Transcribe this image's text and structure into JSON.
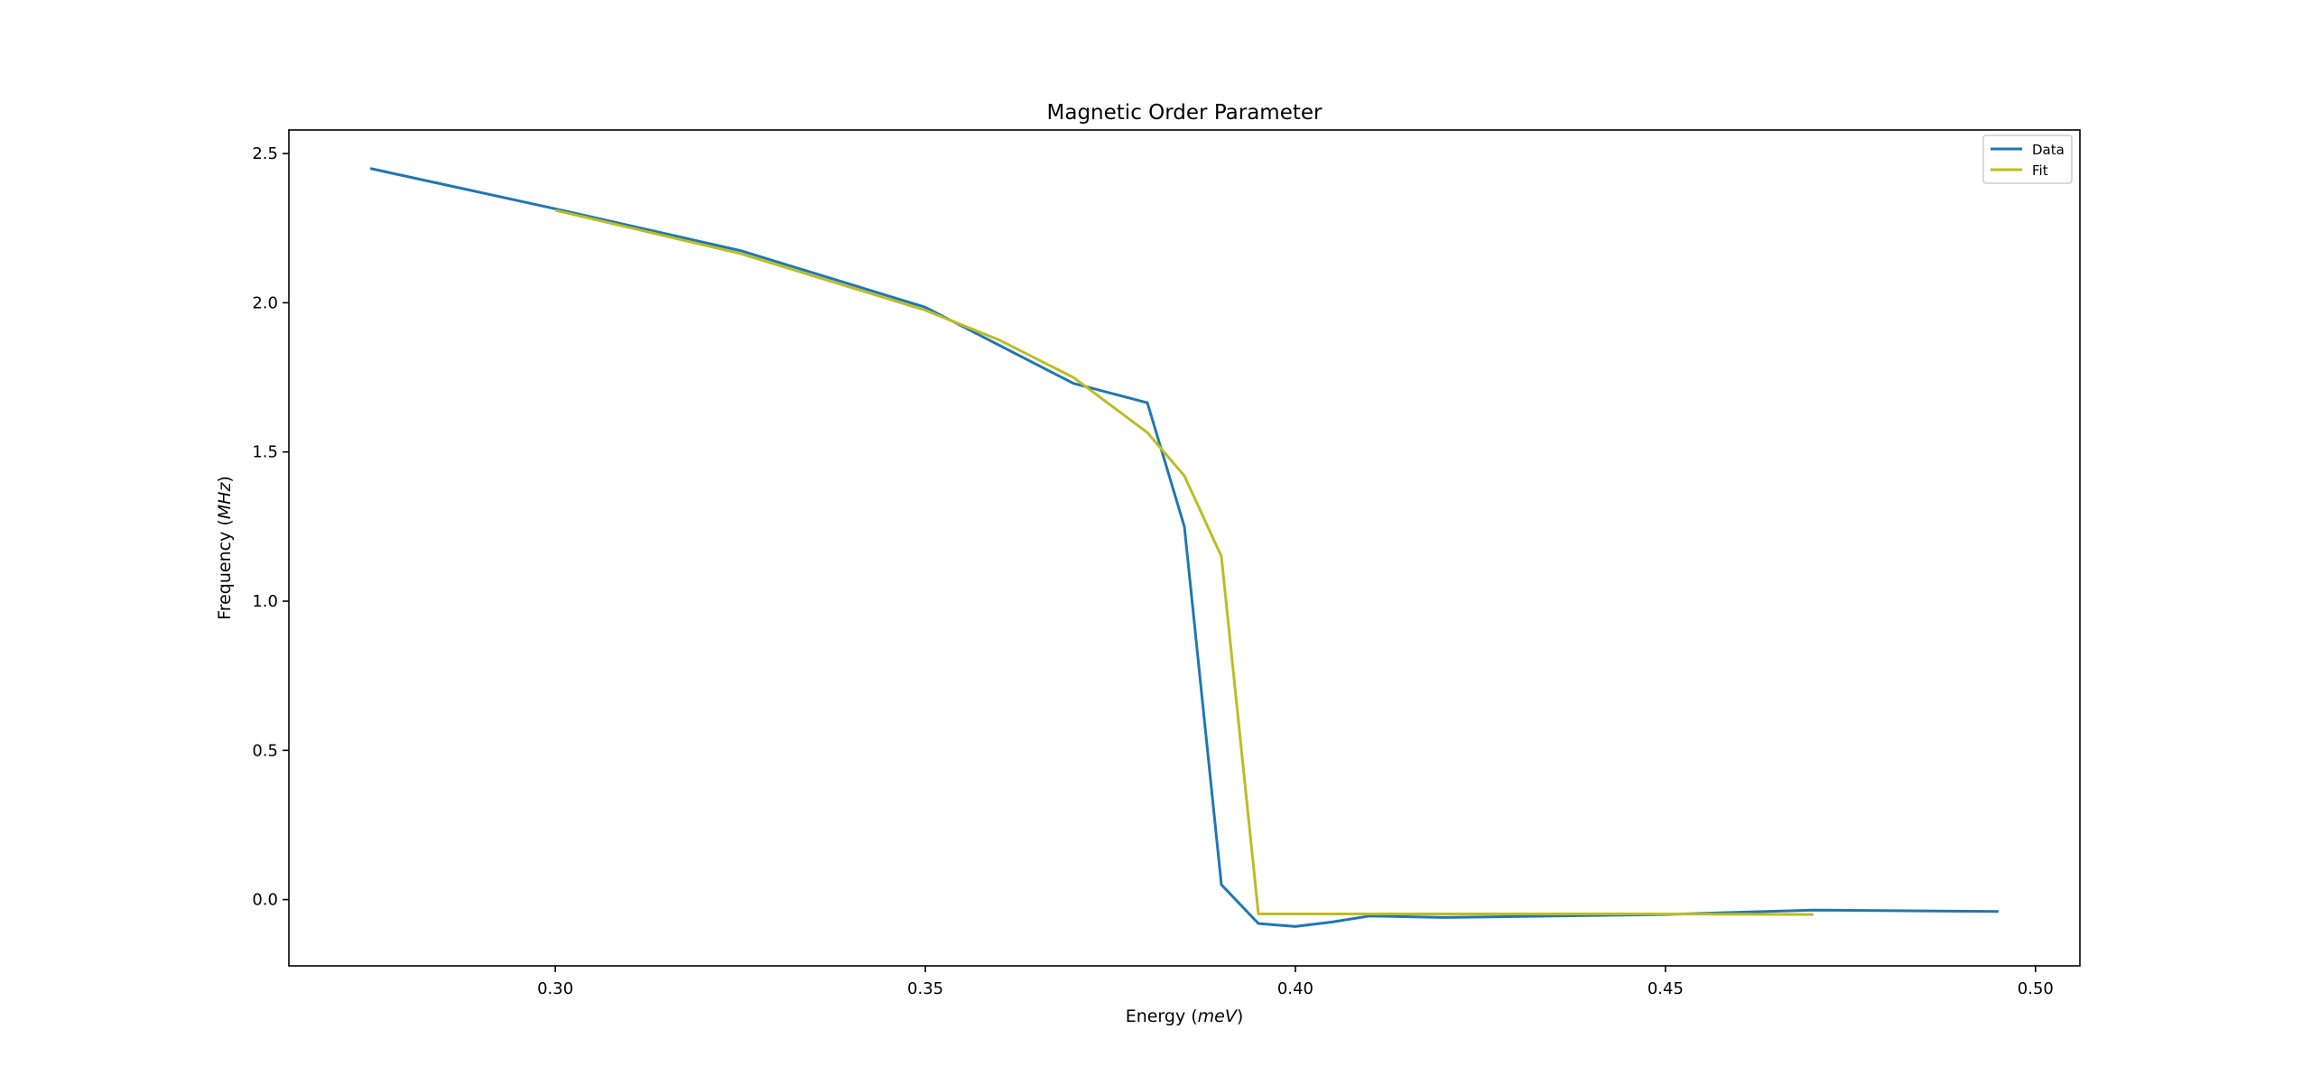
{
  "chart_data": {
    "type": "line",
    "title": "Magnetic Order Parameter",
    "xlabel": "Energy (meV)",
    "xlabel_parts": [
      "Energy (",
      "meV",
      ")"
    ],
    "ylabel": "Frequency (MHz)",
    "ylabel_parts": [
      "Frequency (",
      "MHz",
      ")"
    ],
    "xlim": [
      0.264,
      0.506
    ],
    "ylim": [
      -0.222,
      2.579
    ],
    "xticks": [
      0.3,
      0.35,
      0.4,
      0.45,
      0.5
    ],
    "xtick_labels": [
      "0.30",
      "0.35",
      "0.40",
      "0.45",
      "0.50"
    ],
    "yticks": [
      0.0,
      0.5,
      1.0,
      1.5,
      2.0,
      2.5
    ],
    "ytick_labels": [
      "0.0",
      "0.5",
      "1.0",
      "1.5",
      "2.0",
      "2.5"
    ],
    "grid": false,
    "legend_position": "top-right",
    "series": [
      {
        "name": "Data",
        "color": "#1f77b4",
        "x": [
          0.275,
          0.3,
          0.325,
          0.35,
          0.37,
          0.38,
          0.385,
          0.39,
          0.395,
          0.4,
          0.405,
          0.41,
          0.42,
          0.45,
          0.47,
          0.495
        ],
        "y": [
          2.45,
          2.315,
          2.175,
          1.985,
          1.73,
          1.665,
          1.25,
          0.05,
          -0.08,
          -0.09,
          -0.075,
          -0.055,
          -0.06,
          -0.05,
          -0.035,
          -0.04
        ]
      },
      {
        "name": "Fit",
        "color": "#bcbd22",
        "x": [
          0.3,
          0.325,
          0.35,
          0.36,
          0.37,
          0.38,
          0.385,
          0.39,
          0.395,
          0.41,
          0.45,
          0.47
        ],
        "y": [
          2.31,
          2.165,
          1.975,
          1.875,
          1.75,
          1.565,
          1.42,
          1.15,
          -0.048,
          -0.048,
          -0.048,
          -0.05
        ]
      }
    ]
  }
}
